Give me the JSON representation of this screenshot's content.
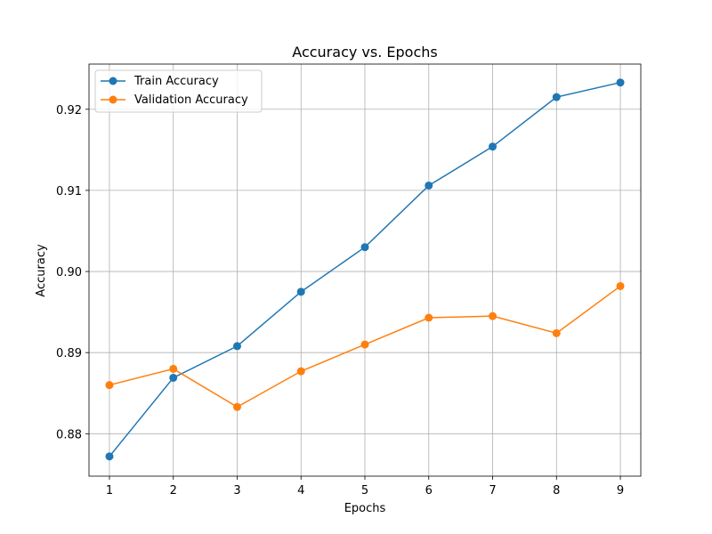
{
  "chart_data": {
    "type": "line",
    "title": "Accuracy vs. Epochs",
    "xlabel": "Epochs",
    "ylabel": "Accuracy",
    "x": [
      1,
      2,
      3,
      4,
      5,
      6,
      7,
      8,
      9
    ],
    "x_ticks": [
      "1",
      "2",
      "3",
      "4",
      "5",
      "6",
      "7",
      "8",
      "9"
    ],
    "y_ticks": [
      "0.88",
      "0.89",
      "0.90",
      "0.91",
      "0.92"
    ],
    "xlim": [
      0.68,
      9.32
    ],
    "ylim": [
      0.87477,
      0.92557
    ],
    "grid": true,
    "legend_position": "top-left",
    "series": [
      {
        "name": "Train Accuracy",
        "color": "#1f77b4",
        "marker": "circle",
        "values": [
          0.8772,
          0.8869,
          0.8908,
          0.8975,
          0.903,
          0.9106,
          0.9154,
          0.9215,
          0.9233
        ]
      },
      {
        "name": "Validation Accuracy",
        "color": "#ff7f0e",
        "marker": "circle",
        "values": [
          0.886,
          0.888,
          0.8833,
          0.8877,
          0.891,
          0.8943,
          0.8945,
          0.8924,
          0.8982
        ]
      }
    ]
  }
}
